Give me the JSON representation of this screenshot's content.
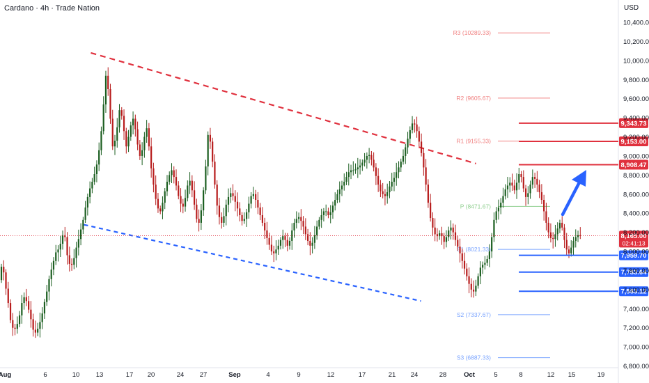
{
  "header": {
    "title": "Cardano · 4h · Trade Nation",
    "currency": "USD"
  },
  "colors": {
    "red": "#e0313e",
    "blue": "#2962ff",
    "green": "#26a69a",
    "candle_up": "#1b5e20",
    "candle_down": "#b71c1c",
    "pivot_red": "#f08080",
    "pivot_blue": "#7aa4ff",
    "pivot_green": "#8fcf8f"
  },
  "chart_data": {
    "type": "candlestick",
    "x_ticks": [
      "Aug",
      "6",
      "10",
      "13",
      "17",
      "20",
      "24",
      "27",
      "Sep",
      "4",
      "9",
      "12",
      "17",
      "21",
      "24",
      "28",
      "Oct",
      "5",
      "8",
      "12",
      "15",
      "19"
    ],
    "y_ticks": [
      "10,400.00",
      "10,200.00",
      "10,000.00",
      "9,800.00",
      "9,600.00",
      "9,400.00",
      "9,200.00",
      "9,000.00",
      "8,800.00",
      "8,600.00",
      "8,400.00",
      "8,200.00",
      "8,000.00",
      "7,800.00",
      "7,600.00",
      "7,400.00",
      "7,200.00",
      "7,000.00",
      "6,800.00"
    ],
    "ylim": [
      6700,
      10500
    ],
    "pivots": [
      {
        "label": "R3 (10289.33)",
        "value": 10289.33,
        "tone": "red"
      },
      {
        "label": "R2 (9605.67)",
        "value": 9605.67,
        "tone": "red"
      },
      {
        "label": "R1 (9155.33)",
        "value": 9155.33,
        "tone": "red"
      },
      {
        "label": "P (8471.67)",
        "value": 8471.67,
        "tone": "green"
      },
      {
        "label": "S1 (8021.33)",
        "value": 8021.33,
        "tone": "blue"
      },
      {
        "label": "S2 (7337.67)",
        "value": 7337.67,
        "tone": "blue"
      },
      {
        "label": "S3 (6887.33)",
        "value": 6887.33,
        "tone": "blue"
      }
    ],
    "levels": [
      {
        "label": "9,343.73",
        "value": 9343.73,
        "tone": "red"
      },
      {
        "label": "9,153.00",
        "value": 9153.0,
        "tone": "red"
      },
      {
        "label": "8,908.47",
        "value": 8908.47,
        "tone": "red"
      },
      {
        "label": "7,959.70",
        "value": 7959.7,
        "tone": "blue"
      },
      {
        "label": "7,783.64",
        "value": 7783.64,
        "tone": "blue"
      },
      {
        "label": "7,583.12",
        "value": 7583.12,
        "tone": "blue"
      }
    ],
    "current": {
      "price": 8165.0,
      "price_label": "8,165.00",
      "countdown": "02:41:13"
    },
    "trendlines": [
      {
        "name": "resistance",
        "tone": "red",
        "from": [
          13.0,
          10080
        ],
        "to": [
          69.0,
          8920
        ]
      },
      {
        "name": "support",
        "tone": "blue",
        "from": [
          12.0,
          8280
        ],
        "to": [
          61.0,
          7480
        ]
      }
    ],
    "closes": [
      7840,
      7780,
      7610,
      7460,
      7280,
      7200,
      7190,
      7240,
      7330,
      7460,
      7520,
      7480,
      7390,
      7290,
      7180,
      7150,
      7190,
      7260,
      7350,
      7470,
      7580,
      7710,
      7810,
      7900,
      7990,
      8020,
      8080,
      8170,
      8150,
      7960,
      7870,
      7860,
      7930,
      8040,
      8130,
      8230,
      8330,
      8460,
      8570,
      8660,
      8730,
      8810,
      8910,
      9060,
      9260,
      9540,
      9840,
      9700,
      9390,
      9100,
      9160,
      9300,
      9480,
      9420,
      9260,
      9100,
      9200,
      9320,
      9390,
      9280,
      9120,
      9000,
      9060,
      9200,
      9290,
      9100,
      8870,
      8700,
      8550,
      8450,
      8420,
      8510,
      8630,
      8730,
      8800,
      8850,
      8780,
      8690,
      8580,
      8500,
      8470,
      8560,
      8690,
      8740,
      8640,
      8490,
      8340,
      8300,
      8430,
      8640,
      8890,
      9220,
      9150,
      8940,
      8700,
      8480,
      8360,
      8300,
      8370,
      8490,
      8570,
      8610,
      8580,
      8520,
      8450,
      8380,
      8320,
      8340,
      8410,
      8500,
      8580,
      8600,
      8540,
      8460,
      8380,
      8300,
      8220,
      8140,
      8070,
      8000,
      7980,
      8020,
      8060,
      8120,
      8160,
      8120,
      8060,
      8110,
      8220,
      8300,
      8340,
      8360,
      8320,
      8260,
      8180,
      8110,
      8060,
      8090,
      8170,
      8260,
      8330,
      8380,
      8420,
      8420,
      8380,
      8410,
      8480,
      8540,
      8600,
      8650,
      8690,
      8730,
      8780,
      8830,
      8850,
      8850,
      8860,
      8880,
      8900,
      8930,
      8960,
      9000,
      9010,
      8960,
      8880,
      8790,
      8700,
      8630,
      8600,
      8580,
      8620,
      8680,
      8730,
      8770,
      8830,
      8880,
      8940,
      9000,
      9090,
      9180,
      9270,
      9340,
      9330,
      9260,
      9150,
      9030,
      8880,
      8700,
      8510,
      8350,
      8250,
      8180,
      8160,
      8190,
      8160,
      8100,
      8150,
      8220,
      8250,
      8200,
      8120,
      8050,
      7980,
      7900,
      7820,
      7740,
      7660,
      7600,
      7580,
      7640,
      7740,
      7830,
      7860,
      7880,
      7920,
      8000,
      8150,
      8330,
      8420,
      8460,
      8510,
      8580,
      8650,
      8690,
      8720,
      8690,
      8640,
      8720,
      8810,
      8780,
      8660,
      8570,
      8610,
      8700,
      8780,
      8760,
      8700,
      8620,
      8540,
      8420,
      8300,
      8200,
      8140,
      8130,
      8180,
      8240,
      8300,
      8250,
      8120,
      8020,
      7980,
      8040,
      8110,
      8150,
      8170,
      8165
    ]
  }
}
